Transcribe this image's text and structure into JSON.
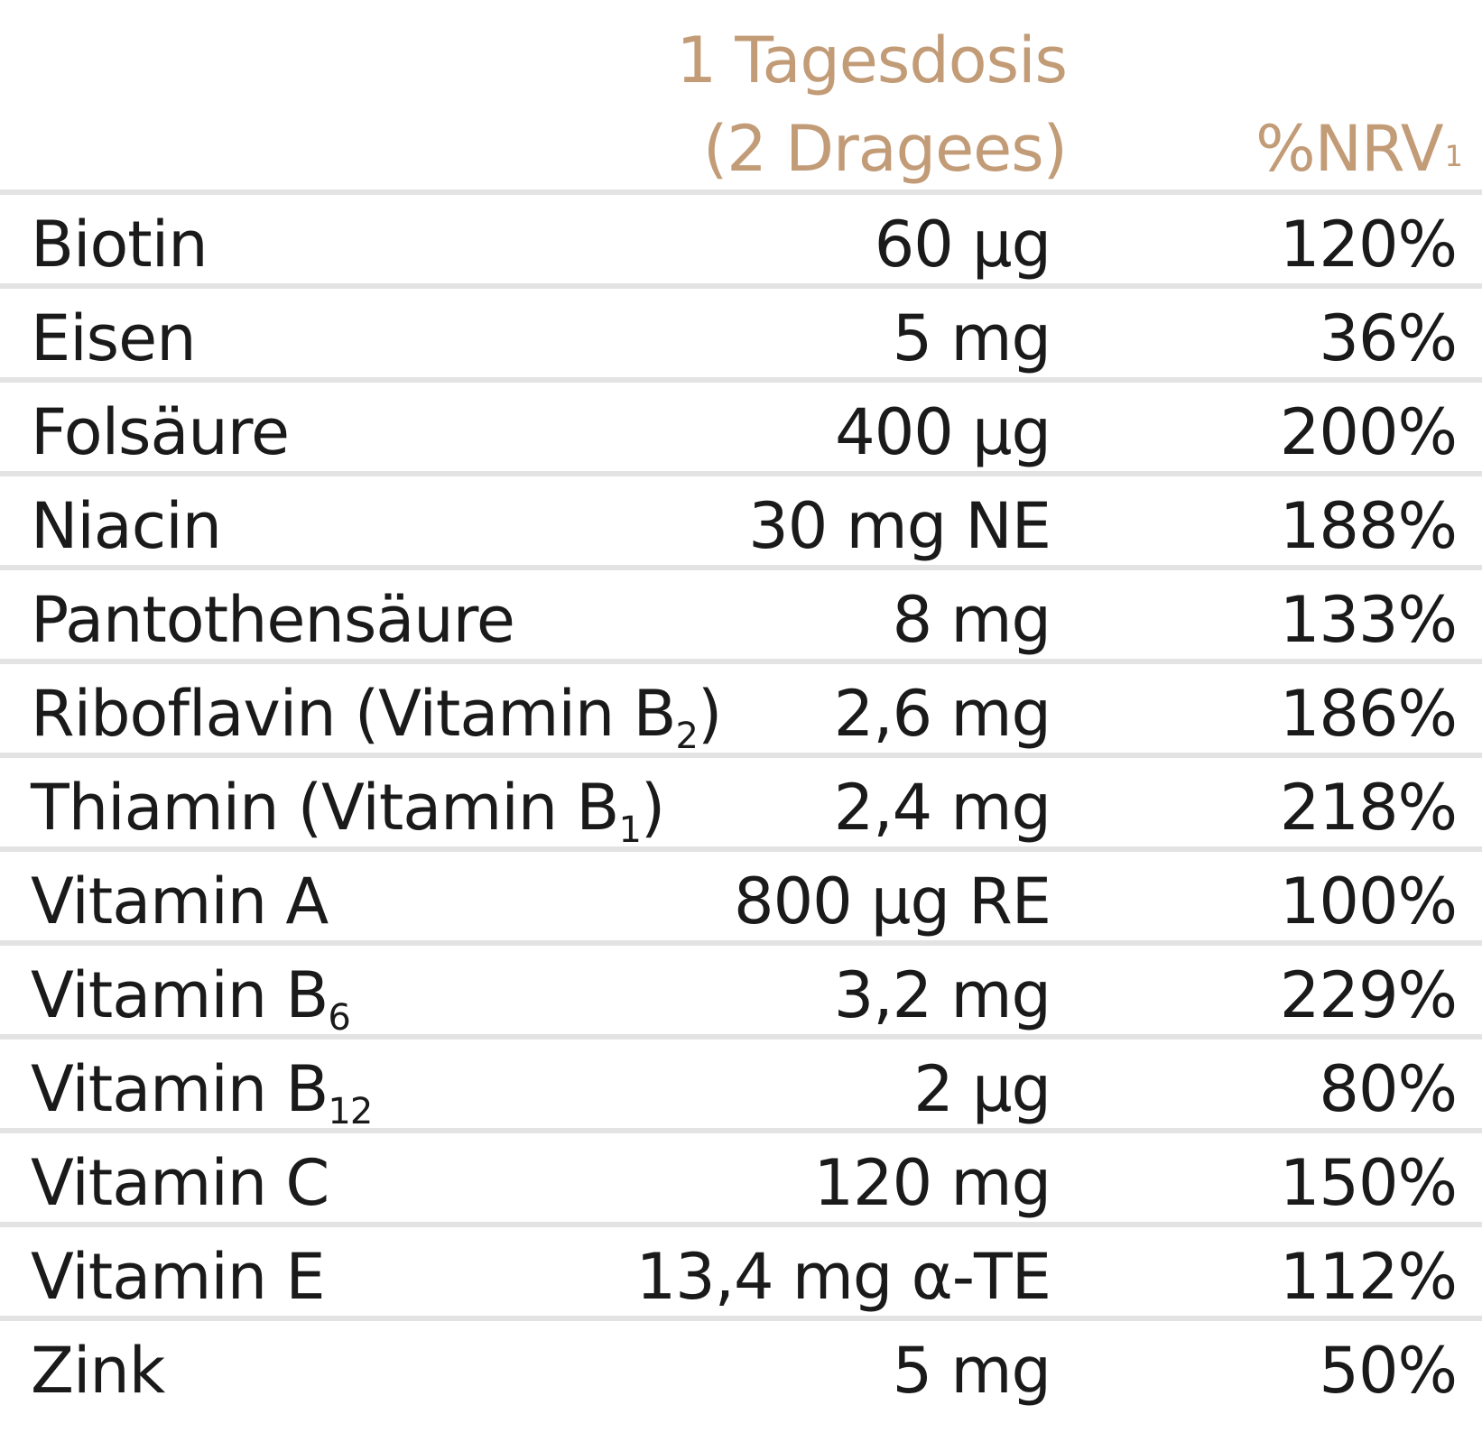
{
  "header": {
    "dose_line1": "1 Tagesdosis",
    "dose_line2": "(2 Dragees)",
    "nrv_label": "%NRV",
    "nrv_footnote": "1"
  },
  "colors": {
    "header_text": "#c29b77",
    "body_text": "#1a1a1a",
    "divider": "#e3e3e3"
  },
  "rows": [
    {
      "name": "Biotin",
      "name_sub": "",
      "name_suffix": "",
      "dose": "60 µg",
      "nrv": "120%"
    },
    {
      "name": "Eisen",
      "name_sub": "",
      "name_suffix": "",
      "dose": "5 mg",
      "nrv": "36%"
    },
    {
      "name": "Folsäure",
      "name_sub": "",
      "name_suffix": "",
      "dose": "400 µg",
      "nrv": "200%"
    },
    {
      "name": "Niacin",
      "name_sub": "",
      "name_suffix": "",
      "dose": "30 mg NE",
      "nrv": "188%"
    },
    {
      "name": "Pantothensäure",
      "name_sub": "",
      "name_suffix": "",
      "dose": "8 mg",
      "nrv": "133%"
    },
    {
      "name": "Riboflavin (Vitamin B",
      "name_sub": "2",
      "name_suffix": ")",
      "dose": "2,6 mg",
      "nrv": "186%"
    },
    {
      "name": "Thiamin (Vitamin B",
      "name_sub": "1",
      "name_suffix": ")",
      "dose": "2,4 mg",
      "nrv": "218%"
    },
    {
      "name": "Vitamin A",
      "name_sub": "",
      "name_suffix": "",
      "dose": "800 µg RE",
      "nrv": "100%"
    },
    {
      "name": "Vitamin B",
      "name_sub": "6",
      "name_suffix": "",
      "dose": "3,2 mg",
      "nrv": "229%"
    },
    {
      "name": "Vitamin B",
      "name_sub": "12",
      "name_suffix": "",
      "dose": "2 µg",
      "nrv": "80%"
    },
    {
      "name": "Vitamin C",
      "name_sub": "",
      "name_suffix": "",
      "dose": "120 mg",
      "nrv": "150%"
    },
    {
      "name": "Vitamin E",
      "name_sub": "",
      "name_suffix": "",
      "dose": "13,4 mg α-TE",
      "nrv": "112%"
    },
    {
      "name": "Zink",
      "name_sub": "",
      "name_suffix": "",
      "dose": "5 mg",
      "nrv": "50%"
    }
  ]
}
